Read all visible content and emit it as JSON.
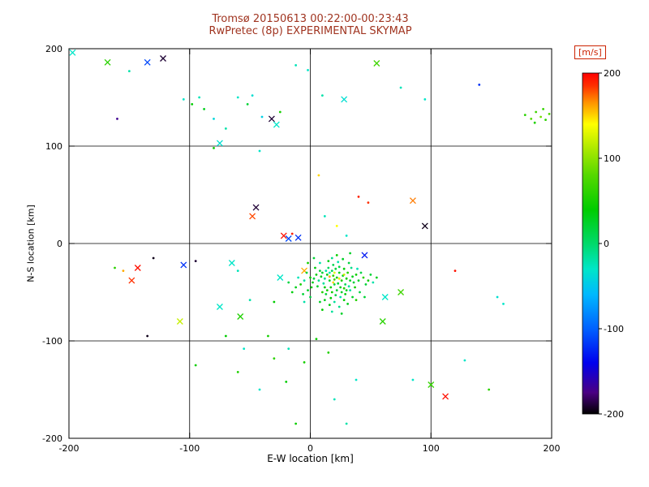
{
  "header": {
    "title_line1": "Tromsø 20150613 00:22:00-00:23:43",
    "title_line2": "RwPretec (8p) EXPERIMENTAL SKYMAP"
  },
  "colors": {
    "title": "#a03420",
    "axis": "#000000",
    "background": "#ffffff",
    "colorbar_label": "#cc2200"
  },
  "chart_data": {
    "type": "scatter",
    "title": "Tromsø 20150613 00:22:00-00:23:43",
    "subtitle": "RwPretec (8p) EXPERIMENTAL SKYMAP",
    "xlabel": "E-W location [km]",
    "ylabel": "N-S location [km]",
    "xlim": [
      -200,
      200
    ],
    "ylim": [
      -200,
      200
    ],
    "xticks": [
      -200,
      -100,
      0,
      100,
      200
    ],
    "yticks": [
      -200,
      -100,
      0,
      100,
      200
    ],
    "grid": true,
    "grid_lines_at": [
      -100,
      0,
      100
    ],
    "legend_position": "none",
    "colorbar": {
      "label": "[m/s]",
      "ticks": [
        200,
        100,
        0,
        -100,
        -200
      ],
      "min": -200,
      "max": 200,
      "stops": [
        [
          -200,
          "#000000"
        ],
        [
          -175,
          "#4b0082"
        ],
        [
          -140,
          "#0000ee"
        ],
        [
          -100,
          "#0061ff"
        ],
        [
          -60,
          "#00b8ff"
        ],
        [
          -30,
          "#00e6c8"
        ],
        [
          0,
          "#00d96a"
        ],
        [
          40,
          "#00cc00"
        ],
        [
          80,
          "#55d800"
        ],
        [
          110,
          "#a8e800"
        ],
        [
          140,
          "#ffff00"
        ],
        [
          165,
          "#ff9500"
        ],
        [
          185,
          "#ff3000"
        ],
        [
          200,
          "#ff0000"
        ]
      ]
    },
    "marker_legend": {
      "d": "small dot echo",
      "x": "cross echo"
    },
    "points": [
      [
        -197,
        196,
        -30,
        "x"
      ],
      [
        -168,
        186,
        60,
        "x"
      ],
      [
        -150,
        177,
        -20,
        "d"
      ],
      [
        -135,
        186,
        -110,
        "x"
      ],
      [
        -122,
        190,
        -190,
        "x"
      ],
      [
        -160,
        128,
        -170,
        "d"
      ],
      [
        -105,
        148,
        -30,
        "d"
      ],
      [
        -98,
        143,
        40,
        "d"
      ],
      [
        -92,
        150,
        -25,
        "d"
      ],
      [
        -88,
        138,
        30,
        "d"
      ],
      [
        -80,
        128,
        -40,
        "d"
      ],
      [
        -70,
        118,
        -20,
        "d"
      ],
      [
        -60,
        150,
        -30,
        "d"
      ],
      [
        -52,
        143,
        20,
        "d"
      ],
      [
        -48,
        152,
        -35,
        "d"
      ],
      [
        -40,
        130,
        -45,
        "d"
      ],
      [
        -32,
        128,
        -190,
        "x"
      ],
      [
        -28,
        122,
        -30,
        "x"
      ],
      [
        -25,
        135,
        50,
        "d"
      ],
      [
        -12,
        183,
        -25,
        "d"
      ],
      [
        -2,
        178,
        -30,
        "d"
      ],
      [
        10,
        152,
        -20,
        "d"
      ],
      [
        28,
        148,
        -35,
        "x"
      ],
      [
        55,
        185,
        70,
        "x"
      ],
      [
        75,
        160,
        -25,
        "d"
      ],
      [
        95,
        148,
        -30,
        "d"
      ],
      [
        140,
        163,
        -120,
        "d"
      ],
      [
        178,
        132,
        60,
        "d"
      ],
      [
        183,
        128,
        80,
        "d"
      ],
      [
        187,
        135,
        70,
        "d"
      ],
      [
        191,
        130,
        90,
        "d"
      ],
      [
        195,
        127,
        60,
        "d"
      ],
      [
        198,
        133,
        75,
        "d"
      ],
      [
        186,
        124,
        55,
        "d"
      ],
      [
        193,
        138,
        65,
        "d"
      ],
      [
        7,
        70,
        150,
        "d"
      ],
      [
        -42,
        95,
        -30,
        "d"
      ],
      [
        -75,
        103,
        -35,
        "x"
      ],
      [
        -80,
        98,
        45,
        "d"
      ],
      [
        -45,
        37,
        -190,
        "x"
      ],
      [
        -48,
        28,
        180,
        "x"
      ],
      [
        40,
        48,
        190,
        "d"
      ],
      [
        48,
        42,
        185,
        "d"
      ],
      [
        85,
        44,
        170,
        "x"
      ],
      [
        95,
        18,
        -195,
        "x"
      ],
      [
        -22,
        8,
        195,
        "x"
      ],
      [
        -18,
        5,
        -110,
        "x"
      ],
      [
        -15,
        10,
        190,
        "d"
      ],
      [
        -10,
        6,
        -120,
        "x"
      ],
      [
        30,
        8,
        -30,
        "d"
      ],
      [
        12,
        28,
        -25,
        "d"
      ],
      [
        22,
        18,
        140,
        "d"
      ],
      [
        45,
        -12,
        -130,
        "x"
      ],
      [
        120,
        -28,
        195,
        "d"
      ],
      [
        155,
        -55,
        -35,
        "d"
      ],
      [
        160,
        -62,
        -30,
        "d"
      ],
      [
        -155,
        -28,
        160,
        "d"
      ],
      [
        -162,
        -25,
        60,
        "d"
      ],
      [
        -143,
        -25,
        195,
        "x"
      ],
      [
        -148,
        -38,
        185,
        "x"
      ],
      [
        -130,
        -15,
        -195,
        "d"
      ],
      [
        -95,
        -18,
        -190,
        "d"
      ],
      [
        -105,
        -22,
        -120,
        "x"
      ],
      [
        -65,
        -20,
        -30,
        "x"
      ],
      [
        -60,
        -28,
        -25,
        "d"
      ],
      [
        -108,
        -80,
        120,
        "x"
      ],
      [
        -135,
        -95,
        -195,
        "d"
      ],
      [
        -75,
        -65,
        -30,
        "x"
      ],
      [
        -58,
        -75,
        55,
        "x"
      ],
      [
        -50,
        -58,
        -20,
        "d"
      ],
      [
        -30,
        -60,
        40,
        "d"
      ],
      [
        -25,
        -35,
        -30,
        "x"
      ],
      [
        -95,
        -125,
        45,
        "d"
      ],
      [
        -60,
        -132,
        55,
        "d"
      ],
      [
        -42,
        -150,
        -30,
        "d"
      ],
      [
        -20,
        -142,
        40,
        "d"
      ],
      [
        -5,
        -122,
        50,
        "d"
      ],
      [
        20,
        -160,
        -25,
        "d"
      ],
      [
        38,
        -140,
        -30,
        "d"
      ],
      [
        60,
        -80,
        60,
        "x"
      ],
      [
        62,
        -55,
        -30,
        "x"
      ],
      [
        75,
        -50,
        70,
        "x"
      ],
      [
        85,
        -140,
        -30,
        "d"
      ],
      [
        100,
        -145,
        65,
        "x"
      ],
      [
        112,
        -157,
        195,
        "x"
      ],
      [
        128,
        -120,
        -30,
        "d"
      ],
      [
        -12,
        -185,
        45,
        "d"
      ],
      [
        30,
        -185,
        -20,
        "d"
      ],
      [
        148,
        -150,
        60,
        "d"
      ],
      [
        -35,
        -95,
        50,
        "d"
      ],
      [
        -18,
        -108,
        -25,
        "d"
      ],
      [
        5,
        -98,
        45,
        "d"
      ],
      [
        15,
        -112,
        55,
        "d"
      ],
      [
        -30,
        -118,
        60,
        "d"
      ],
      [
        -55,
        -108,
        -30,
        "d"
      ],
      [
        -70,
        -95,
        40,
        "d"
      ],
      [
        -5,
        -28,
        160,
        "x"
      ],
      [
        10,
        -30,
        20,
        "d"
      ],
      [
        14,
        -32,
        35,
        "d"
      ],
      [
        18,
        -28,
        10,
        "d"
      ],
      [
        22,
        -35,
        45,
        "d"
      ],
      [
        16,
        -38,
        25,
        "d"
      ],
      [
        20,
        -42,
        15,
        "d"
      ],
      [
        12,
        -36,
        -10,
        "d"
      ],
      [
        24,
        -30,
        30,
        "d"
      ],
      [
        26,
        -38,
        50,
        "d"
      ],
      [
        15,
        -25,
        5,
        "d"
      ],
      [
        19,
        -33,
        60,
        "d"
      ],
      [
        23,
        -41,
        20,
        "d"
      ],
      [
        17,
        -45,
        35,
        "d"
      ],
      [
        11,
        -41,
        -15,
        "d"
      ],
      [
        27,
        -33,
        25,
        "d"
      ],
      [
        30,
        -36,
        40,
        "d"
      ],
      [
        21,
        -26,
        15,
        "d"
      ],
      [
        13,
        -28,
        -20,
        "d"
      ],
      [
        25,
        -45,
        30,
        "d"
      ],
      [
        29,
        -42,
        10,
        "d"
      ],
      [
        18,
        -50,
        45,
        "d"
      ],
      [
        22,
        -48,
        20,
        "d"
      ],
      [
        9,
        -34,
        30,
        "d"
      ],
      [
        7,
        -38,
        -10,
        "d"
      ],
      [
        31,
        -30,
        55,
        "d"
      ],
      [
        33,
        -38,
        25,
        "d"
      ],
      [
        28,
        -26,
        35,
        "d"
      ],
      [
        16,
        -30,
        -25,
        "d"
      ],
      [
        20,
        -37,
        70,
        "d"
      ],
      [
        24,
        -24,
        15,
        "d"
      ],
      [
        12,
        -45,
        40,
        "d"
      ],
      [
        8,
        -28,
        20,
        "d"
      ],
      [
        35,
        -34,
        30,
        "d"
      ],
      [
        32,
        -44,
        -15,
        "d"
      ],
      [
        26,
        -50,
        25,
        "d"
      ],
      [
        14,
        -48,
        50,
        "d"
      ],
      [
        19,
        -22,
        10,
        "d"
      ],
      [
        23,
        -19,
        -20,
        "d"
      ],
      [
        28,
        -46,
        60,
        "d"
      ],
      [
        36,
        -40,
        20,
        "d"
      ],
      [
        5,
        -32,
        35,
        "d"
      ],
      [
        3,
        -36,
        15,
        "d"
      ],
      [
        38,
        -32,
        45,
        "d"
      ],
      [
        34,
        -25,
        -10,
        "d"
      ],
      [
        30,
        -48,
        30,
        "d"
      ],
      [
        10,
        -50,
        55,
        "d"
      ],
      [
        6,
        -44,
        25,
        "d"
      ],
      [
        21,
        -53,
        15,
        "d"
      ],
      [
        25,
        -55,
        -20,
        "d"
      ],
      [
        17,
        -56,
        40,
        "d"
      ],
      [
        13,
        -52,
        20,
        "d"
      ],
      [
        29,
        -52,
        35,
        "d"
      ],
      [
        33,
        -48,
        -15,
        "d"
      ],
      [
        37,
        -45,
        50,
        "d"
      ],
      [
        40,
        -38,
        25,
        "d"
      ],
      [
        42,
        -30,
        15,
        "d"
      ],
      [
        39,
        -26,
        -25,
        "d"
      ],
      [
        2,
        -40,
        30,
        "d"
      ],
      [
        0,
        -35,
        45,
        "d"
      ],
      [
        -3,
        -30,
        20,
        "d"
      ],
      [
        -5,
        -38,
        -15,
        "d"
      ],
      [
        1,
        -45,
        35,
        "d"
      ],
      [
        -2,
        -48,
        25,
        "d"
      ],
      [
        44,
        -35,
        60,
        "d"
      ],
      [
        46,
        -42,
        20,
        "d"
      ],
      [
        15,
        -18,
        30,
        "d"
      ],
      [
        18,
        -15,
        -10,
        "d"
      ],
      [
        22,
        -12,
        45,
        "d"
      ],
      [
        27,
        -16,
        25,
        "d"
      ],
      [
        32,
        -20,
        15,
        "d"
      ],
      [
        8,
        -20,
        -20,
        "d"
      ],
      [
        4,
        -25,
        35,
        "d"
      ],
      [
        -8,
        -42,
        50,
        "d"
      ],
      [
        -6,
        -52,
        20,
        "d"
      ],
      [
        12,
        -58,
        30,
        "d"
      ],
      [
        20,
        -60,
        -15,
        "d"
      ],
      [
        28,
        -58,
        40,
        "d"
      ],
      [
        35,
        -55,
        25,
        "d"
      ],
      [
        41,
        -50,
        15,
        "d"
      ],
      [
        -10,
        -35,
        -25,
        "d"
      ],
      [
        -12,
        -45,
        30,
        "d"
      ],
      [
        48,
        -38,
        45,
        "d"
      ],
      [
        50,
        -32,
        20,
        "d"
      ],
      [
        24,
        -65,
        -10,
        "d"
      ],
      [
        16,
        -63,
        35,
        "d"
      ],
      [
        8,
        -60,
        25,
        "d"
      ],
      [
        0,
        -55,
        15,
        "d"
      ],
      [
        -5,
        -60,
        -20,
        "d"
      ],
      [
        31,
        -62,
        30,
        "d"
      ],
      [
        38,
        -58,
        55,
        "d"
      ],
      [
        45,
        -55,
        20,
        "d"
      ],
      [
        10,
        -68,
        40,
        "d"
      ],
      [
        18,
        -70,
        -15,
        "d"
      ],
      [
        26,
        -72,
        25,
        "d"
      ],
      [
        -15,
        -50,
        35,
        "d"
      ],
      [
        -18,
        -40,
        15,
        "d"
      ],
      [
        52,
        -40,
        -20,
        "d"
      ],
      [
        55,
        -35,
        30,
        "d"
      ],
      [
        3,
        -15,
        20,
        "d"
      ],
      [
        -2,
        -20,
        50,
        "d"
      ],
      [
        33,
        -10,
        25,
        "d"
      ],
      [
        20,
        -30,
        130,
        "d"
      ],
      [
        24,
        -36,
        145,
        "d"
      ],
      [
        16,
        -34,
        160,
        "d"
      ],
      [
        28,
        -32,
        120,
        "d"
      ],
      [
        19,
        -40,
        150,
        "d"
      ]
    ]
  }
}
